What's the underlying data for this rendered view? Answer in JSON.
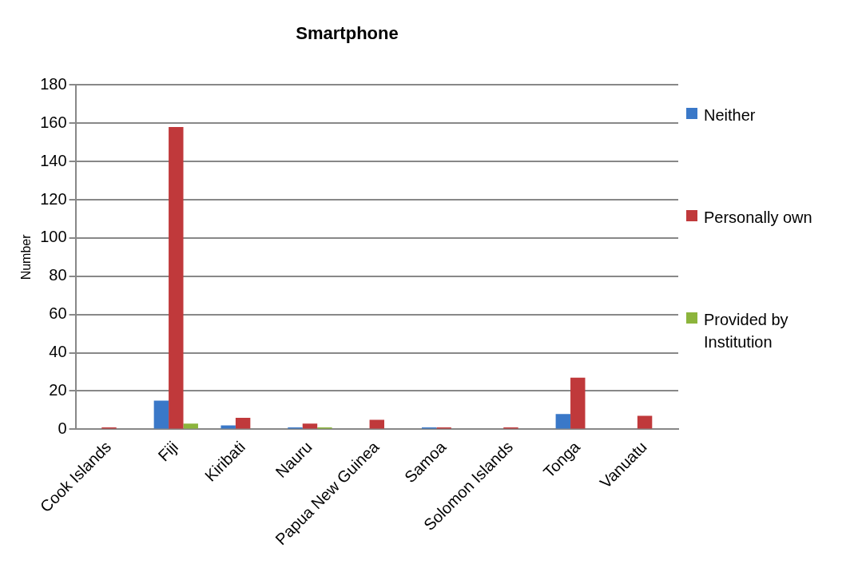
{
  "chart_data": {
    "type": "bar",
    "title": "Smartphone",
    "ylabel": "Number",
    "categories": [
      "Cook Islands",
      "Fiji",
      "Kiribati",
      "Nauru",
      "Papua New Guinea",
      "Samoa",
      "Solomon Islands",
      "Tonga",
      "Vanuatu"
    ],
    "series": [
      {
        "name": "Neither",
        "color": "#3a78c8",
        "values": [
          0,
          15,
          2,
          1,
          0,
          1,
          0,
          8,
          0
        ]
      },
      {
        "name": "Personally own",
        "color": "#c0393b",
        "values": [
          1,
          158,
          6,
          3,
          5,
          1,
          1,
          27,
          7
        ]
      },
      {
        "name": "Provided by Institution",
        "color": "#8cb43c",
        "values": [
          0,
          3,
          0,
          1,
          0,
          0,
          0,
          0,
          0
        ]
      }
    ],
    "ylim": [
      0,
      180
    ],
    "yticks": [
      0,
      20,
      40,
      60,
      80,
      100,
      120,
      140,
      160,
      180
    ],
    "grid": "y",
    "legend": "right"
  }
}
